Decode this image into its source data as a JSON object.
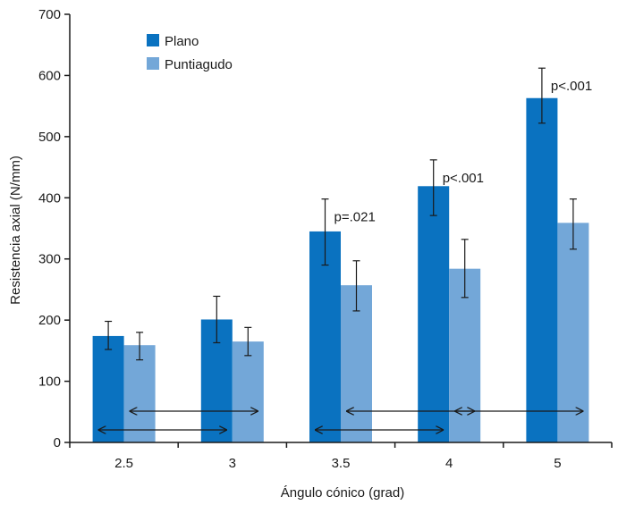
{
  "chart_data": {
    "type": "bar",
    "title": "",
    "xlabel": "Ángulo cónico (grad)",
    "ylabel": "Resistencia axial  (N/mm)",
    "ylim": [
      0,
      700
    ],
    "yticks": [
      "0",
      "100",
      "200",
      "300",
      "400",
      "500",
      "600",
      "700"
    ],
    "categories": [
      "2.5",
      "3",
      "3.5",
      "4",
      "5"
    ],
    "legend_position": "top-left",
    "grid": false,
    "series": [
      {
        "name": "Plano",
        "color": "#0a72c0",
        "values": [
          174,
          201,
          345,
          419,
          563
        ],
        "err_low": [
          152,
          163,
          290,
          371,
          522
        ],
        "err_high": [
          198,
          239,
          398,
          462,
          612
        ]
      },
      {
        "name": "Puntiagudo",
        "color": "#73a7d8",
        "values": [
          159,
          165,
          257,
          284,
          359
        ],
        "err_low": [
          135,
          142,
          215,
          237,
          316
        ],
        "err_high": [
          180,
          188,
          297,
          332,
          398
        ]
      }
    ],
    "annotations": [
      {
        "text": "p=.021",
        "category": "3.5"
      },
      {
        "text": "p<.001",
        "category": "4"
      },
      {
        "text": "p<.001",
        "category": "5"
      }
    ],
    "comparison_arrows": [
      {
        "from": "2.5",
        "to": "3",
        "series": "Plano"
      },
      {
        "from": "2.5",
        "to": "3",
        "series": "Puntiagudo"
      },
      {
        "from": "3.5",
        "to": "4",
        "series": "Plano"
      },
      {
        "from": "3.5",
        "to": "4",
        "series": "Puntiagudo"
      },
      {
        "from": "4",
        "to": "5",
        "series": "Puntiagudo"
      }
    ]
  }
}
